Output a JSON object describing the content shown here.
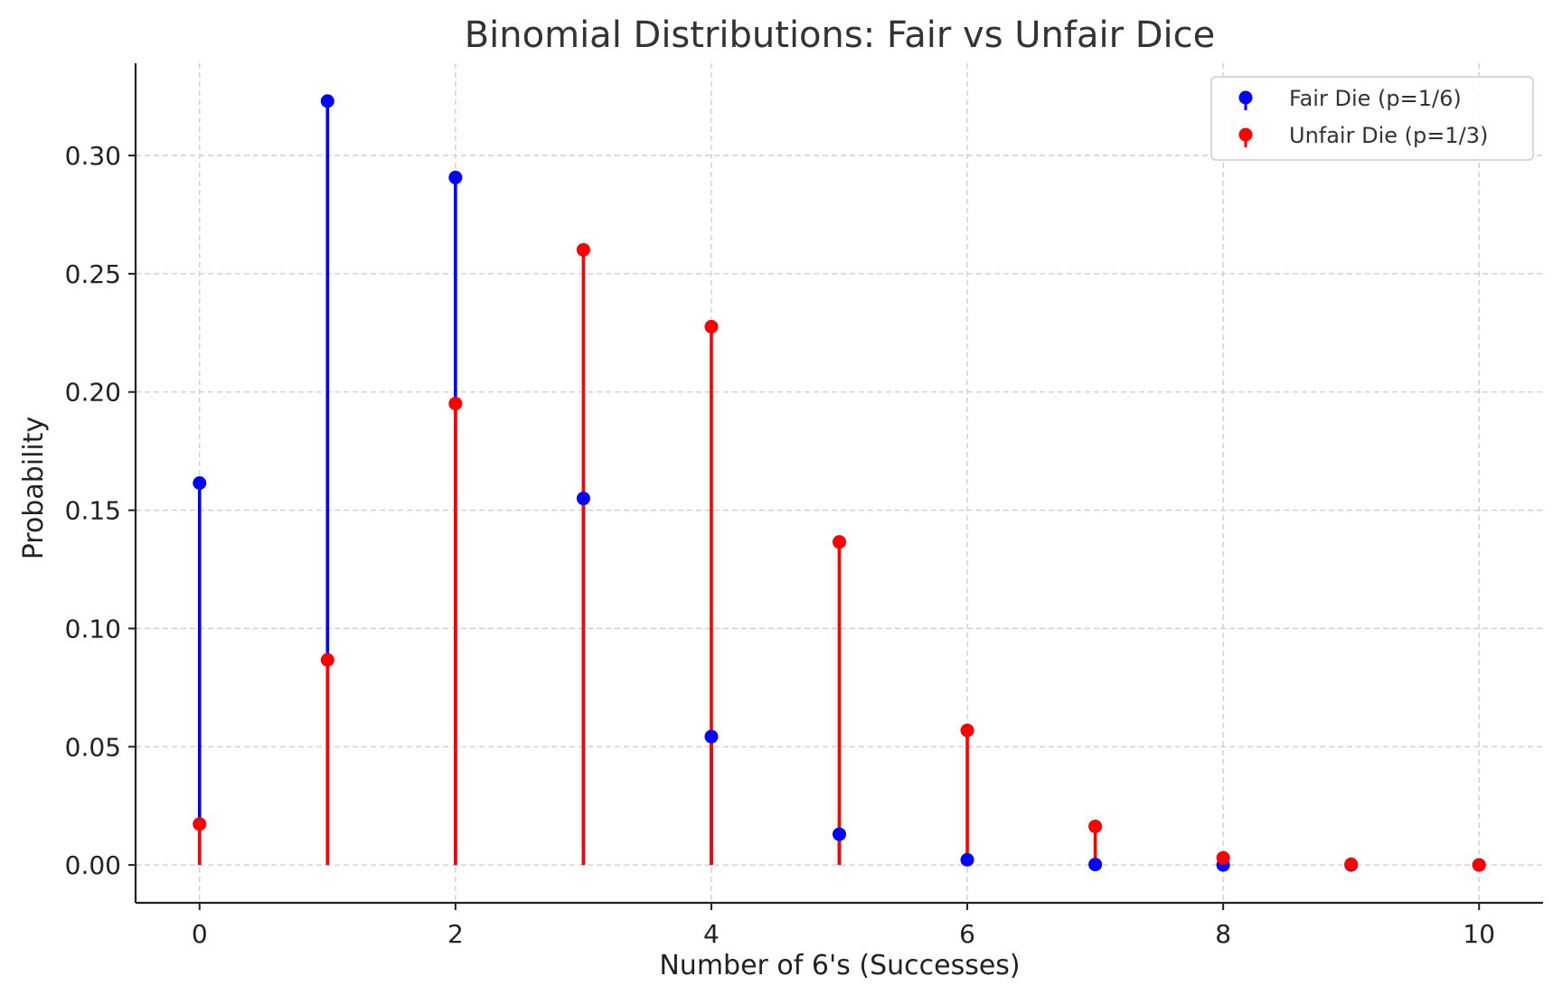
{
  "chart_data": {
    "type": "stem",
    "title": "Binomial Distributions: Fair vs Unfair Dice",
    "xlabel": "Number of 6's (Successes)",
    "ylabel": "Probability",
    "xlim": [
      -0.5,
      10.5
    ],
    "ylim": [
      -0.016,
      0.339
    ],
    "xticks": [
      0,
      2,
      4,
      6,
      8,
      10
    ],
    "yticks": [
      0.0,
      0.05,
      0.1,
      0.15,
      0.2,
      0.25,
      0.3
    ],
    "ytick_labels": [
      "0.00",
      "0.05",
      "0.10",
      "0.15",
      "0.20",
      "0.25",
      "0.30"
    ],
    "grid": true,
    "legend_position": "top-right",
    "x": [
      0,
      1,
      2,
      3,
      4,
      5,
      6,
      7,
      8,
      9,
      10
    ],
    "series": [
      {
        "name": "Fair Die (p=1/6)",
        "color": "#0000ff",
        "values": [
          0.1615,
          0.323,
          0.2907,
          0.155,
          0.0543,
          0.013,
          0.0022,
          0.0002,
          2e-05,
          0.0,
          0.0
        ]
      },
      {
        "name": "Unfair Die (p=1/3)",
        "color": "#ff0000",
        "values": [
          0.0173,
          0.0867,
          0.1951,
          0.2601,
          0.2276,
          0.1366,
          0.0569,
          0.0163,
          0.003,
          0.0003,
          2e-05
        ]
      }
    ]
  }
}
